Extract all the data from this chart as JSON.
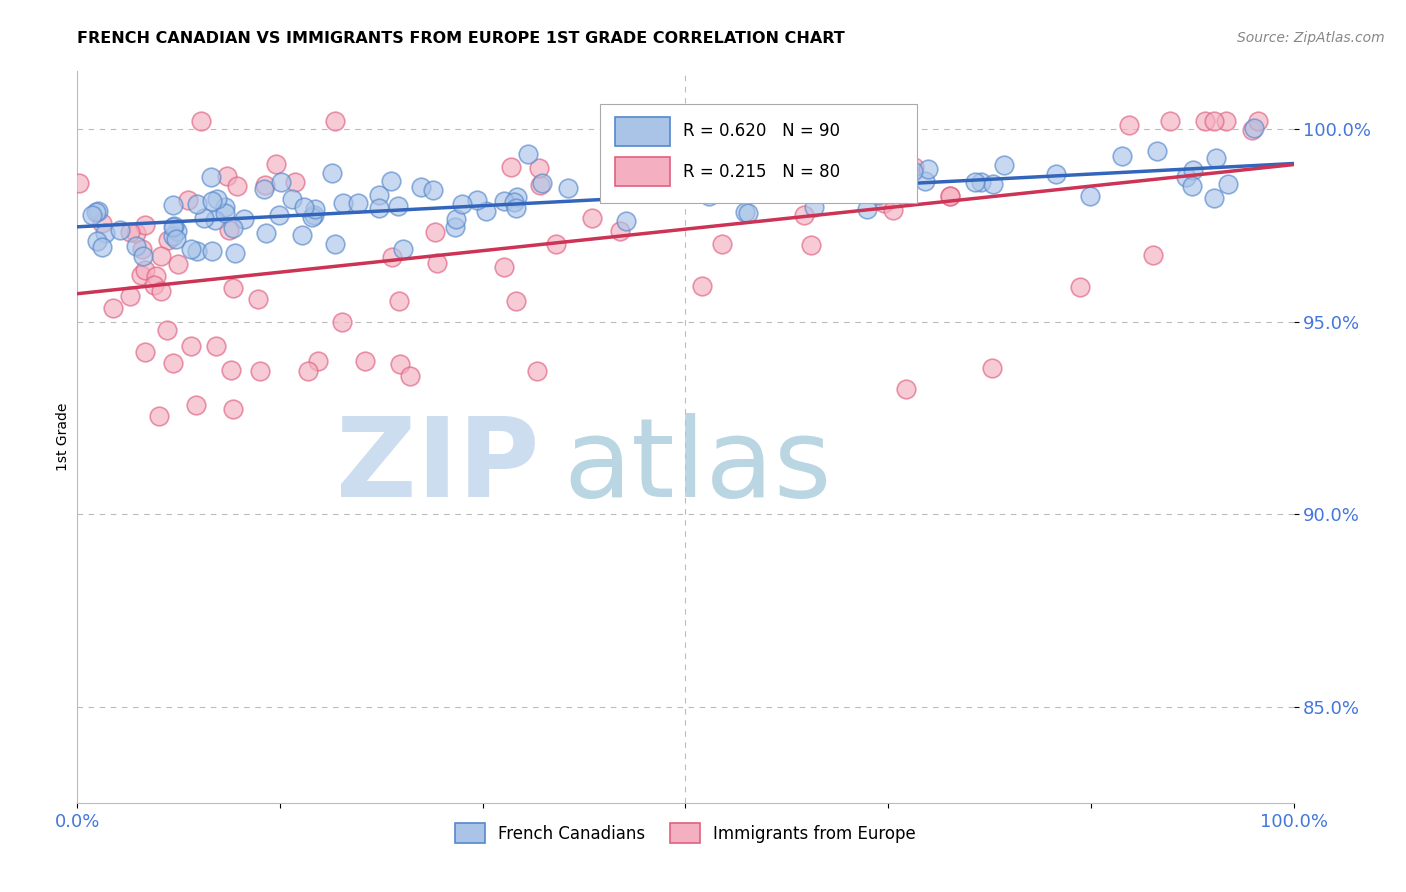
{
  "title": "FRENCH CANADIAN VS IMMIGRANTS FROM EUROPE 1ST GRADE CORRELATION CHART",
  "source": "Source: ZipAtlas.com",
  "ylabel": "1st Grade",
  "ytick_labels": [
    "100.0%",
    "95.0%",
    "90.0%",
    "85.0%"
  ],
  "ytick_values": [
    1.0,
    0.95,
    0.9,
    0.85
  ],
  "xmin": 0.0,
  "xmax": 1.0,
  "ymin": 0.825,
  "ymax": 1.015,
  "blue_R": 0.62,
  "blue_N": 90,
  "pink_R": 0.215,
  "pink_N": 80,
  "blue_color": "#aac4e8",
  "pink_color": "#f4b0c0",
  "blue_edge_color": "#5588cc",
  "pink_edge_color": "#e06080",
  "blue_line_color": "#3366bb",
  "pink_line_color": "#cc3355",
  "legend_label_blue": "French Canadians",
  "legend_label_pink": "Immigrants from Europe",
  "background_color": "#ffffff",
  "grid_color": "#bbbbbb",
  "ytick_color": "#4477dd",
  "xtick_color": "#4477dd"
}
